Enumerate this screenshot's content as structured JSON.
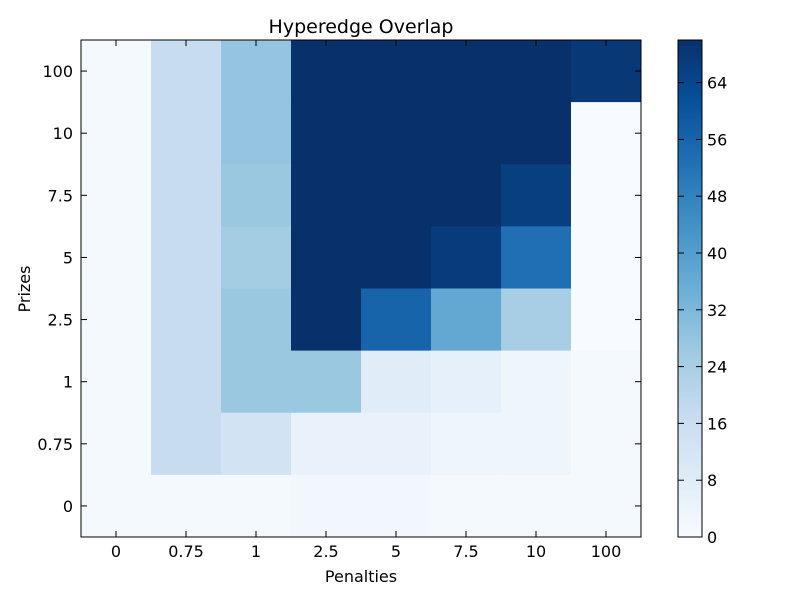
{
  "chart_data": {
    "type": "heatmap",
    "title": "Hyperedge Overlap",
    "xlabel": "Penalties",
    "ylabel": "Prizes",
    "x_categories": [
      "0",
      "0.75",
      "1",
      "2.5",
      "5",
      "7.5",
      "10",
      "100"
    ],
    "y_categories": [
      "100",
      "10",
      "7.5",
      "5",
      "2.5",
      "1",
      "0.75",
      "0"
    ],
    "colormap": "Blues",
    "colorbar": {
      "min": 0,
      "max": 70,
      "ticks": [
        0,
        8,
        16,
        24,
        32,
        40,
        48,
        56,
        64
      ]
    },
    "values": [
      [
        1,
        17,
        28,
        70,
        70,
        70,
        70,
        68
      ],
      [
        1,
        17,
        28,
        70,
        70,
        70,
        70,
        0
      ],
      [
        1,
        17,
        27,
        70,
        70,
        70,
        66,
        0
      ],
      [
        1,
        17,
        25,
        70,
        70,
        67,
        53,
        0
      ],
      [
        1,
        17,
        27,
        70,
        56,
        37,
        24,
        0
      ],
      [
        1,
        17,
        27,
        27,
        8,
        6,
        3,
        1
      ],
      [
        1,
        17,
        13,
        5,
        5,
        3,
        3,
        1
      ],
      [
        1,
        1,
        1,
        2,
        2,
        1,
        1,
        1
      ]
    ]
  }
}
